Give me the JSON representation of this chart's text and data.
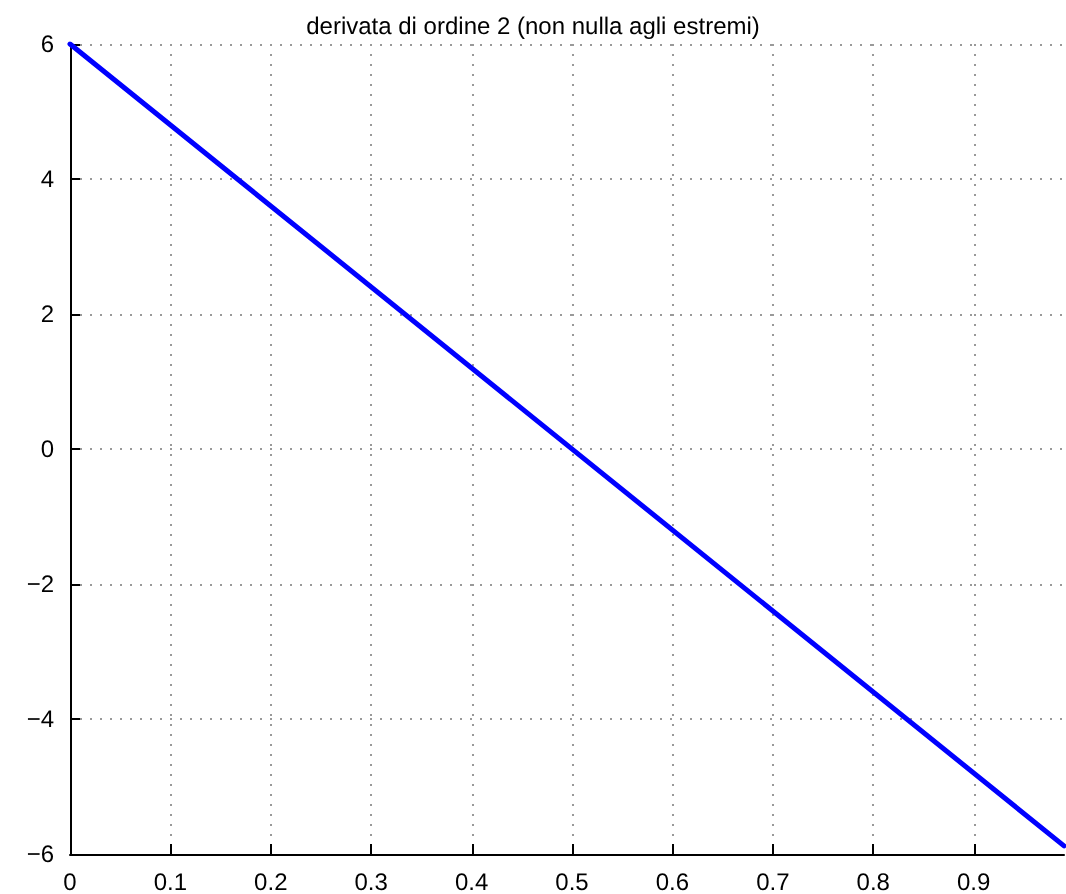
{
  "chart_data": {
    "type": "line",
    "title": "derivata di ordine 2 (non nulla agli estremi)",
    "x": [
      0,
      0.99
    ],
    "series": [
      {
        "color": "#0000ff",
        "values": [
          6,
          -5.88
        ]
      }
    ],
    "xlim": [
      0,
      0.99
    ],
    "xticks": [
      0,
      0.1,
      0.2,
      0.3,
      0.4,
      0.5,
      0.6,
      0.7,
      0.8,
      0.9
    ],
    "ylim": [
      -6,
      6
    ],
    "yticks": [
      -6,
      -4,
      -2,
      0,
      2,
      4,
      6
    ],
    "grid": true,
    "line_style": "solid",
    "marker": "none"
  }
}
